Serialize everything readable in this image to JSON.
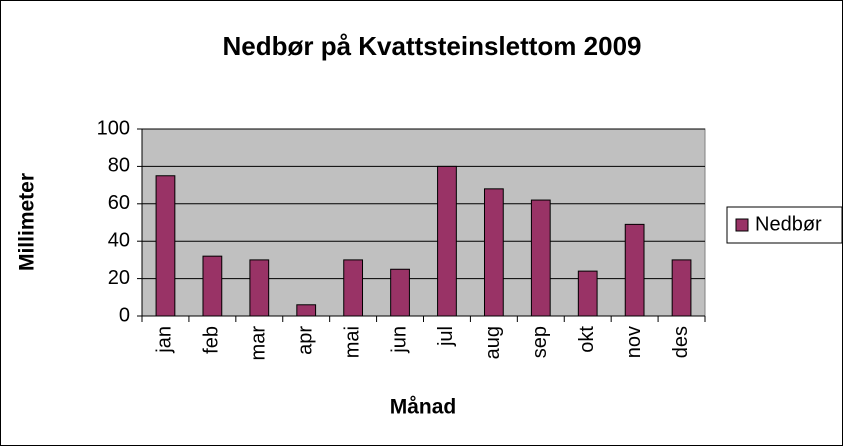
{
  "chart_data": {
    "type": "bar",
    "title": "Nedbør på Kvattsteinslettom 2009",
    "x_label": "Månad",
    "y_label": "Millimeter",
    "categories": [
      "jan",
      "feb",
      "mar",
      "apr",
      "mai",
      "jun",
      "jul",
      "aug",
      "sep",
      "okt",
      "nov",
      "des"
    ],
    "series": [
      {
        "name": "Nedbør",
        "color": "#993366",
        "values": [
          75,
          32,
          30,
          6,
          30,
          25,
          80,
          68,
          62,
          24,
          49,
          30
        ]
      }
    ],
    "ylim": [
      0,
      100
    ],
    "yticks": [
      0,
      20,
      40,
      60,
      80,
      100
    ],
    "grid": true,
    "legend": "right"
  }
}
